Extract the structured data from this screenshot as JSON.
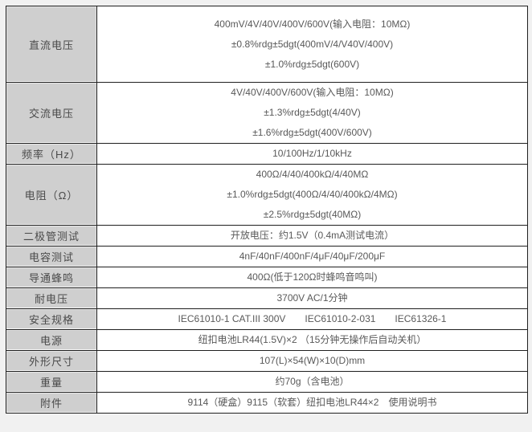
{
  "colors": {
    "page_background": "#f1f1f1",
    "label_cell_background": "#cfcfcf",
    "value_cell_background": "#ffffff",
    "border": "#1f1f1f",
    "text": "#595959"
  },
  "table": {
    "rows": [
      {
        "label": "直流电压",
        "lines": [
          "400mV/4V/40V/400V/600V(输入电阻：10MΩ)",
          "±0.8%rdg±5dgt(400mV/4/V40V/400V)",
          "±1.0%rdg±5dgt(600V)"
        ]
      },
      {
        "label": "交流电压",
        "lines": [
          "4V/40V/400V/600V(输入电阻：10MΩ)",
          "±1.3%rdg±5dgt(4/40V)",
          "±1.6%rdg±5dgt(400V/600V)"
        ]
      },
      {
        "label": "频率（Hz）",
        "lines": [
          "10/100Hz/1/10kHz"
        ]
      },
      {
        "label": "电阻（Ω）",
        "lines": [
          "400Ω/4/40/400kΩ/4/40MΩ",
          "±1.0%rdg±5dgt(400Ω/4/40/400kΩ/4MΩ)",
          "±2.5%rdg±5dgt(40MΩ)"
        ]
      },
      {
        "label": "二极管测试",
        "lines": [
          "开放电压：约1.5V（0.4mA测试电流）"
        ]
      },
      {
        "label": "电容测试",
        "lines": [
          "4nF/40nF/400nF/4μF/40μF/200μF"
        ]
      },
      {
        "label": "导通蜂鸣",
        "lines": [
          "400Ω(低于120Ω时蜂鸣音鸣叫)"
        ]
      },
      {
        "label": "耐电压",
        "lines": [
          "3700V AC/1分钟"
        ]
      },
      {
        "label": "安全规格",
        "lines": [
          "IEC61010-1 CAT.III 300V　　IEC61010-2-031　　IEC61326-1"
        ]
      },
      {
        "label": "电源",
        "lines": [
          "纽扣电池LR44(1.5V)×2 （15分钟无操作后自动关机）"
        ]
      },
      {
        "label": "外形尺寸",
        "lines": [
          "107(L)×54(W)×10(D)mm"
        ]
      },
      {
        "label": "重量",
        "lines": [
          "约70g（含电池）"
        ]
      },
      {
        "label": "附件",
        "lines": [
          "9114（硬盒）9115（软套）纽扣电池LR44×2　使用说明书"
        ]
      }
    ]
  }
}
